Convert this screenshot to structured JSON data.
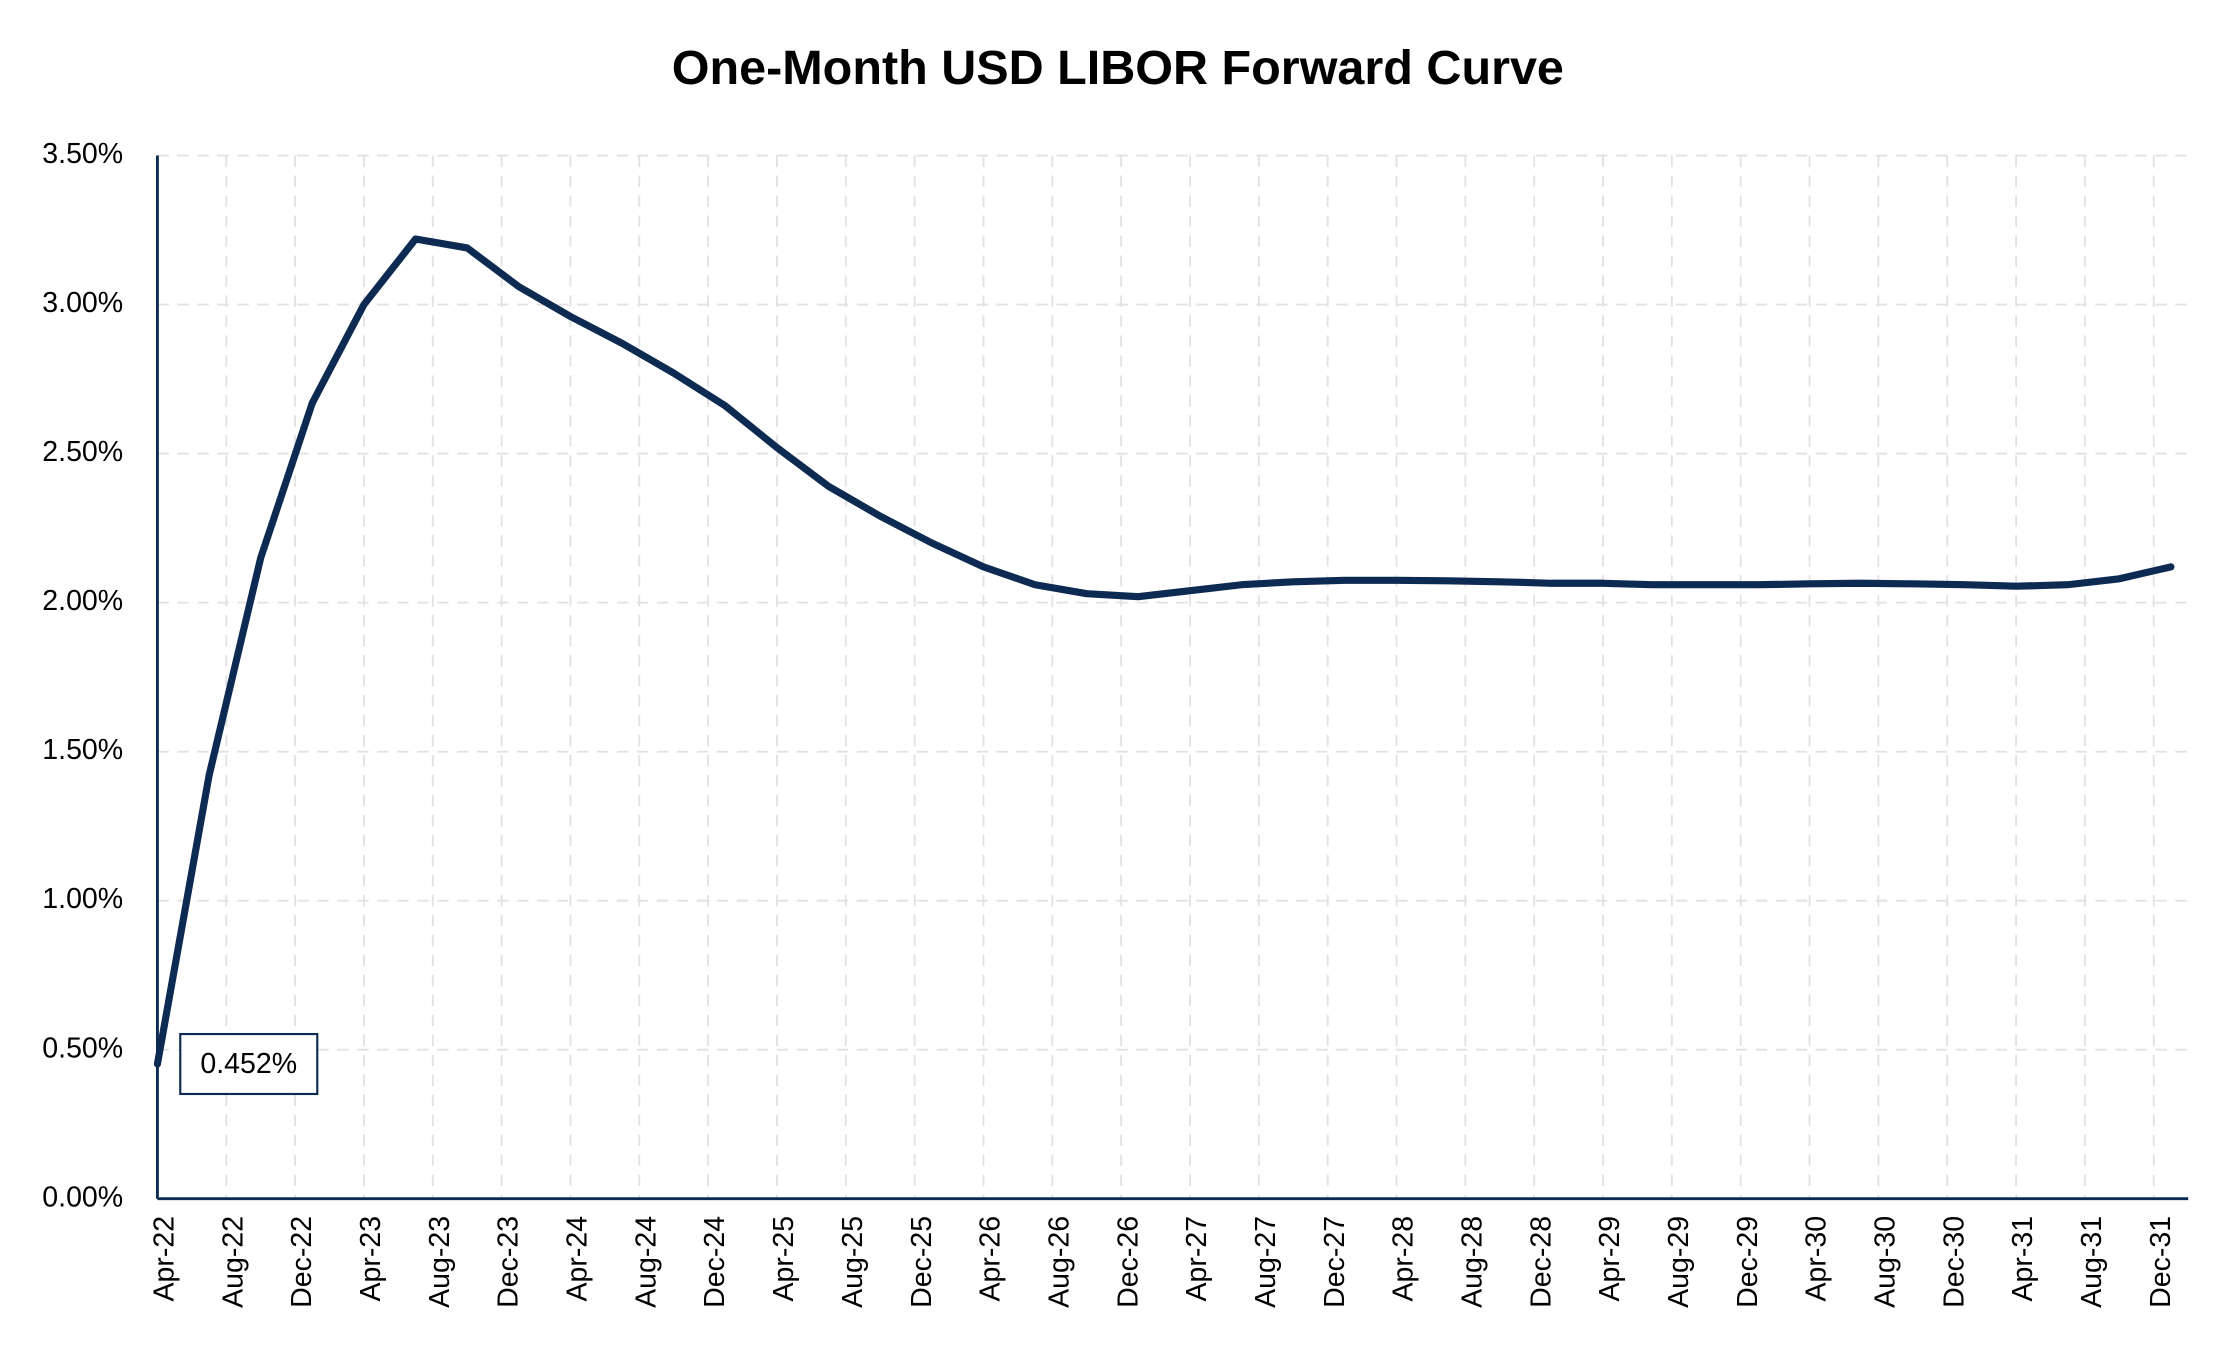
{
  "chart_data": {
    "type": "line",
    "title": "One-Month USD LIBOR Forward Curve",
    "x": [
      "2022-04",
      "2022-07",
      "2022-10",
      "2023-01",
      "2023-04",
      "2023-07",
      "2023-10",
      "2024-01",
      "2024-04",
      "2024-07",
      "2024-10",
      "2025-01",
      "2025-04",
      "2025-07",
      "2025-10",
      "2026-01",
      "2026-04",
      "2026-07",
      "2026-10",
      "2027-01",
      "2027-04",
      "2027-07",
      "2027-10",
      "2028-01",
      "2028-04",
      "2028-07",
      "2028-10",
      "2029-01",
      "2029-04",
      "2029-07",
      "2029-10",
      "2030-01",
      "2030-04",
      "2030-07",
      "2030-10",
      "2031-01",
      "2031-04",
      "2031-07",
      "2031-10",
      "2032-01"
    ],
    "series": [
      {
        "name": "One-Month USD LIBOR",
        "color": "#0d2b52",
        "values": [
          0.452,
          1.42,
          2.15,
          2.67,
          3.0,
          3.22,
          3.19,
          3.06,
          2.96,
          2.87,
          2.77,
          2.66,
          2.52,
          2.39,
          2.29,
          2.2,
          2.12,
          2.06,
          2.03,
          2.02,
          2.04,
          2.06,
          2.07,
          2.075,
          2.075,
          2.073,
          2.07,
          2.065,
          2.065,
          2.06,
          2.06,
          2.06,
          2.063,
          2.065,
          2.063,
          2.06,
          2.055,
          2.06,
          2.08,
          2.12
        ],
        "value_labels": [
          "0.452%",
          null,
          null,
          null,
          null,
          null,
          null,
          null,
          null,
          null,
          null,
          null,
          null,
          null,
          null,
          null,
          null,
          null,
          null,
          null,
          null,
          null,
          null,
          null,
          null,
          null,
          null,
          null,
          null,
          null,
          null,
          null,
          null,
          null,
          null,
          null,
          null,
          null,
          null,
          null
        ]
      }
    ],
    "xlim": [
      "2022-04",
      "2032-02"
    ],
    "xticks": [
      {
        "value": "2022-04",
        "label": "Apr-22"
      },
      {
        "value": "2022-08",
        "label": "Aug-22"
      },
      {
        "value": "2022-12",
        "label": "Dec-22"
      },
      {
        "value": "2023-04",
        "label": "Apr-23"
      },
      {
        "value": "2023-08",
        "label": "Aug-23"
      },
      {
        "value": "2023-12",
        "label": "Dec-23"
      },
      {
        "value": "2024-04",
        "label": "Apr-24"
      },
      {
        "value": "2024-08",
        "label": "Aug-24"
      },
      {
        "value": "2024-12",
        "label": "Dec-24"
      },
      {
        "value": "2025-04",
        "label": "Apr-25"
      },
      {
        "value": "2025-08",
        "label": "Aug-25"
      },
      {
        "value": "2025-12",
        "label": "Dec-25"
      },
      {
        "value": "2026-04",
        "label": "Apr-26"
      },
      {
        "value": "2026-08",
        "label": "Aug-26"
      },
      {
        "value": "2026-12",
        "label": "Dec-26"
      },
      {
        "value": "2027-04",
        "label": "Apr-27"
      },
      {
        "value": "2027-08",
        "label": "Aug-27"
      },
      {
        "value": "2027-12",
        "label": "Dec-27"
      },
      {
        "value": "2028-04",
        "label": "Apr-28"
      },
      {
        "value": "2028-08",
        "label": "Aug-28"
      },
      {
        "value": "2028-12",
        "label": "Dec-28"
      },
      {
        "value": "2029-04",
        "label": "Apr-29"
      },
      {
        "value": "2029-08",
        "label": "Aug-29"
      },
      {
        "value": "2029-12",
        "label": "Dec-29"
      },
      {
        "value": "2030-04",
        "label": "Apr-30"
      },
      {
        "value": "2030-08",
        "label": "Aug-30"
      },
      {
        "value": "2030-12",
        "label": "Dec-30"
      },
      {
        "value": "2031-04",
        "label": "Apr-31"
      },
      {
        "value": "2031-08",
        "label": "Aug-31"
      },
      {
        "value": "2031-12",
        "label": "Dec-31"
      }
    ],
    "ylim": [
      0,
      3.5
    ],
    "yticks": [
      {
        "value": 0,
        "label": "0.00%"
      },
      {
        "value": 0.5,
        "label": "0.50%"
      },
      {
        "value": 1,
        "label": "1.00%"
      },
      {
        "value": 1.5,
        "label": "1.50%"
      },
      {
        "value": 2,
        "label": "2.00%"
      },
      {
        "value": 2.5,
        "label": "2.50%"
      },
      {
        "value": 3,
        "label": "3.00%"
      },
      {
        "value": 3.5,
        "label": "3.50%"
      }
    ],
    "grid": true
  }
}
